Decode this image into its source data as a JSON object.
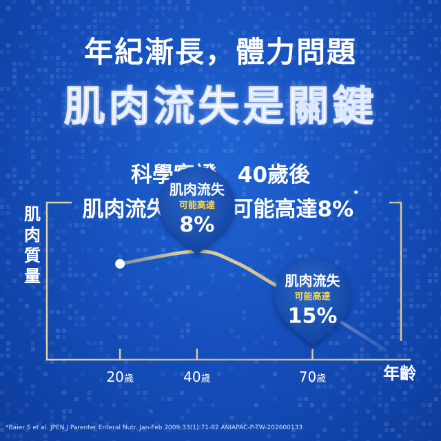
{
  "header": {
    "title_line1": "年紀漸長，體力問題",
    "title_line2": "肌肉流失是關鍵"
  },
  "subtitle": {
    "line1": "科學實證，40歲後",
    "line2_text": "肌肉流失每十年可能高達8%",
    "line2_mark": "*"
  },
  "chart_data": {
    "type": "line",
    "title": "",
    "ylabel": "肌肉質量",
    "ylabel_chars": [
      "肌",
      "肉",
      "質",
      "量"
    ],
    "xlabel": "年齡",
    "x_ticks": [
      {
        "value": 20,
        "num": "20",
        "unit": "歲"
      },
      {
        "value": 40,
        "num": "40",
        "unit": "歲"
      },
      {
        "value": 70,
        "num": "70",
        "unit": "歲"
      }
    ],
    "xlim": [
      1,
      93
    ],
    "ylim": [
      0,
      100
    ],
    "series": [
      {
        "x": [
          20,
          40,
          50,
          60,
          70,
          80,
          89
        ],
        "y": [
          61,
          69,
          62,
          48,
          35,
          20,
          6
        ]
      }
    ],
    "start_point": {
      "x": 20,
      "y": 61
    },
    "callouts": [
      {
        "x": 40,
        "title": "肌肉流失",
        "sub": "可能高達",
        "value": "8%"
      },
      {
        "x": 70,
        "title": "肌肉流失",
        "sub": "可能高達",
        "value": "15%"
      }
    ],
    "grid": false,
    "colors": {
      "curve_gold": "#d8c48c",
      "frame_gold": "#d4c08a",
      "bubble": "#1a4fb0",
      "bubble_sub": "#ffd84a"
    }
  },
  "footnote": "*Baier S et al. JPEN J Parenter Enteral Nutr. Jan-Feb 2009;33(1):71-82    ANIAPAC-P-TW-202600133"
}
